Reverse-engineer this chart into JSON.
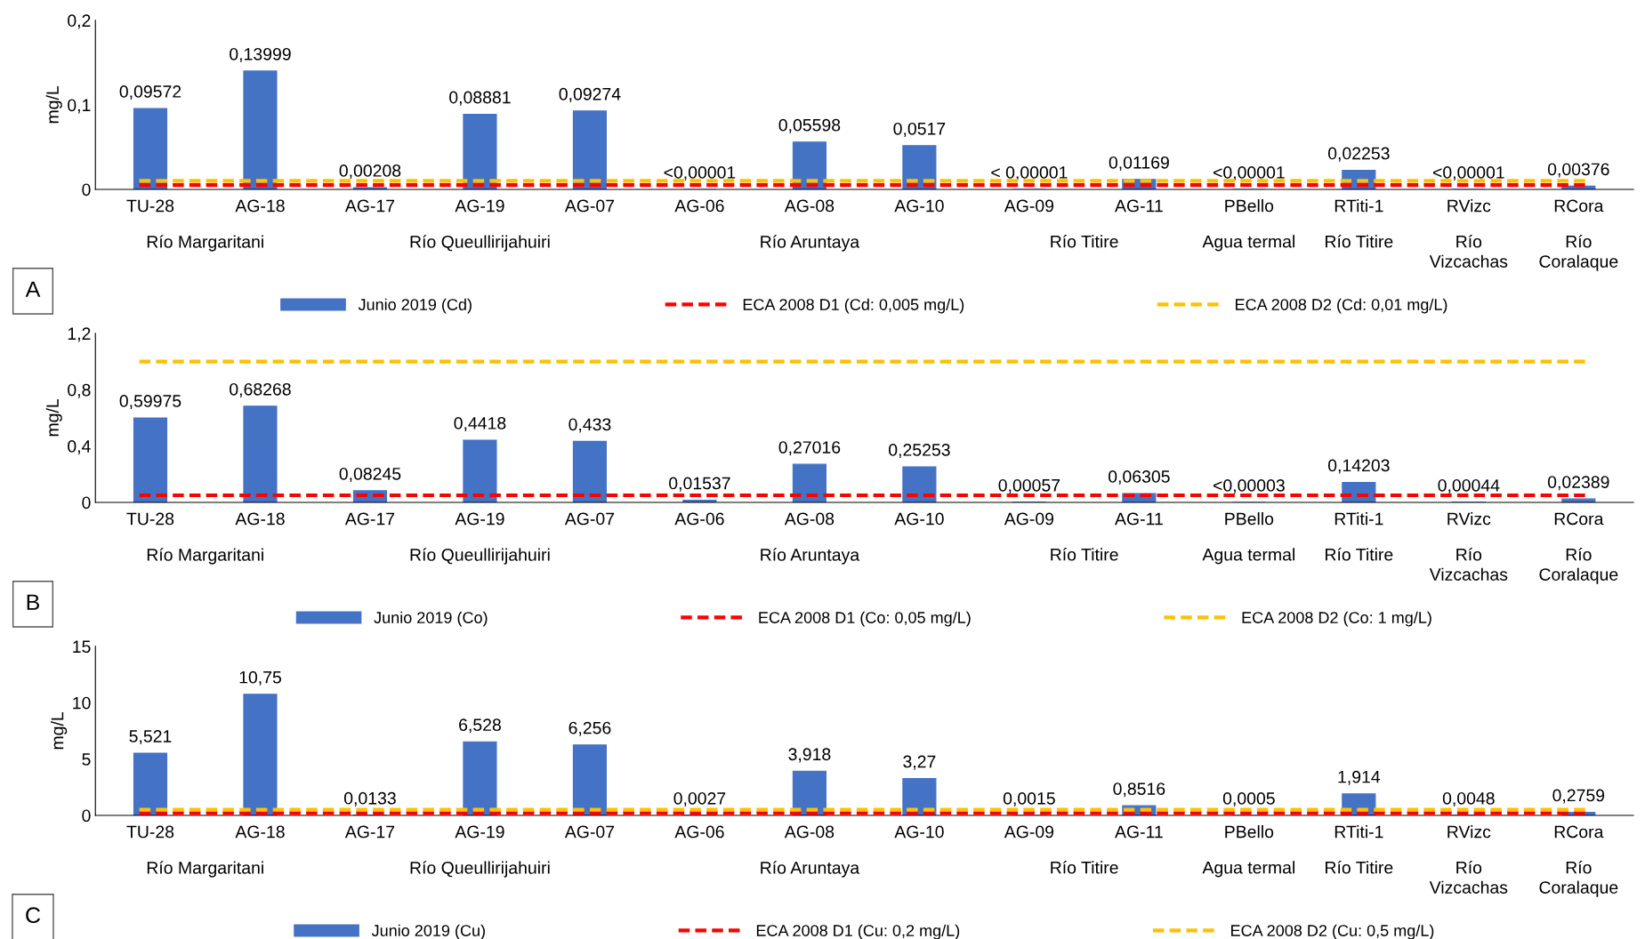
{
  "chart_data": [
    {
      "type": "bar",
      "title": "A",
      "ylabel": "mg/L",
      "categories": [
        "TU-28",
        "AG-18",
        "AG-17",
        "AG-19",
        "AG-07",
        "AG-06",
        "AG-08",
        "AG-10",
        "AG-09",
        "AG-11",
        "PBello",
        "RTiti-1",
        "RVizc",
        "RCora"
      ],
      "series": [
        {
          "name": "Junio 2019 (Cd)",
          "color": "#4472c4",
          "values": [
            0.09572,
            0.13999,
            0.00208,
            0.08881,
            0.09274,
            0,
            0.05598,
            0.0517,
            0,
            0.01169,
            0,
            0.02253,
            0,
            0.00376
          ],
          "value_labels": [
            "0,09572",
            "0,13999",
            "0,00208",
            "0,08881",
            "0,09274",
            "<0,00001",
            "0,05598",
            "0,0517",
            "< 0,00001",
            "0,01169",
            "<0,00001",
            "0,02253",
            "<0,00001",
            "0,00376"
          ]
        }
      ],
      "ylim": [
        0,
        0.2
      ],
      "yticks": [
        0,
        {
          "value": 0.1,
          "label": "0,1"
        },
        {
          "value": 0.2,
          "label": "0,2"
        }
      ],
      "ref_lines": [
        {
          "axis": "y",
          "value": 0.005,
          "label": "ECA 2008 D1 (Cd: 0,005 mg/L)",
          "color": "#ff0000",
          "line_style": "dashed"
        },
        {
          "axis": "y",
          "value": 0.01,
          "label": "ECA 2008 D2 (Cd: 0,01 mg/L)",
          "color": "#ffc000",
          "line_style": "dashed"
        }
      ],
      "annotations": [
        "Río Margaritani",
        "Río Queullirijahuiri",
        "Río Aruntaya",
        "Río Titire",
        "Agua termal",
        "Río Titire",
        "Río\nVizcachas",
        "Río\nCoralaque"
      ],
      "legend": "bottom",
      "grid": false
    },
    {
      "type": "bar",
      "title": "B",
      "ylabel": "mg/L",
      "categories": [
        "TU-28",
        "AG-18",
        "AG-17",
        "AG-19",
        "AG-07",
        "AG-06",
        "AG-08",
        "AG-10",
        "AG-09",
        "AG-11",
        "PBello",
        "RTiti-1",
        "RVizc",
        "RCora"
      ],
      "series": [
        {
          "name": "Junio 2019 (Co)",
          "color": "#4472c4",
          "values": [
            0.59975,
            0.68268,
            0.08245,
            0.4418,
            0.433,
            0.01537,
            0.27016,
            0.25253,
            0.00057,
            0.06305,
            0,
            0.14203,
            0.00044,
            0.02389
          ],
          "value_labels": [
            "0,59975",
            "0,68268",
            "0,08245",
            "0,4418",
            "0,433",
            "0,01537",
            "0,27016",
            "0,25253",
            "0,00057",
            "0,06305",
            "<0,00003",
            "0,14203",
            "0,00044",
            "0,02389"
          ]
        }
      ],
      "ylim": [
        0,
        1.2
      ],
      "yticks": [
        0,
        {
          "value": 0.4,
          "label": "0,4"
        },
        {
          "value": 0.8,
          "label": "0,8"
        },
        {
          "value": 1.2,
          "label": "1,2"
        }
      ],
      "ref_lines": [
        {
          "axis": "y",
          "value": 0.05,
          "label": "ECA 2008 D1 (Co: 0,05 mg/L)",
          "color": "#ff0000",
          "line_style": "dashed"
        },
        {
          "axis": "y",
          "value": 1,
          "label": "ECA 2008 D2 (Co: 1 mg/L)",
          "color": "#ffc000",
          "line_style": "dashed"
        }
      ],
      "annotations": [
        "Río Margaritani",
        "Río Queullirijahuiri",
        "Río Aruntaya",
        "Río Titire",
        "Agua termal",
        "Río Titire",
        "Río\nVizcachas",
        "Río\nCoralaque"
      ],
      "legend": "bottom",
      "grid": false
    },
    {
      "type": "bar",
      "title": "C",
      "ylabel": "mg/L",
      "categories": [
        "TU-28",
        "AG-18",
        "AG-17",
        "AG-19",
        "AG-07",
        "AG-06",
        "AG-08",
        "AG-10",
        "AG-09",
        "AG-11",
        "PBello",
        "RTiti-1",
        "RVizc",
        "RCora"
      ],
      "series": [
        {
          "name": "Junio 2019 (Cu)",
          "color": "#4472c4",
          "values": [
            5.521,
            10.75,
            0.0133,
            6.528,
            6.256,
            0.0027,
            3.918,
            3.27,
            0.0015,
            0.8516,
            0.0005,
            1.914,
            0.0048,
            0.2759
          ],
          "value_labels": [
            "5,521",
            "10,75",
            "0,0133",
            "6,528",
            "6,256",
            "0,0027",
            "3,918",
            "3,27",
            "0,0015",
            "0,8516",
            "0,0005",
            "1,914",
            "0,0048",
            "0,2759"
          ]
        }
      ],
      "ylim": [
        0,
        15
      ],
      "yticks": [
        0,
        5,
        10,
        15
      ],
      "ref_lines": [
        {
          "axis": "y",
          "value": 0.2,
          "label": "ECA 2008 D1 (Cu: 0,2 mg/L)",
          "color": "#ff0000",
          "line_style": "dashed"
        },
        {
          "axis": "y",
          "value": 0.5,
          "label": "ECA 2008 D2 (Cu: 0,5 mg/L)",
          "color": "#ffc000",
          "line_style": "dashed"
        }
      ],
      "annotations": [
        "Río Margaritani",
        "Río Queullirijahuiri",
        "Río Aruntaya",
        "Río Titire",
        "Agua termal",
        "Río Titire",
        "Río\nVizcachas",
        "Río\nCoralaque"
      ],
      "legend": "bottom",
      "grid": false
    }
  ]
}
